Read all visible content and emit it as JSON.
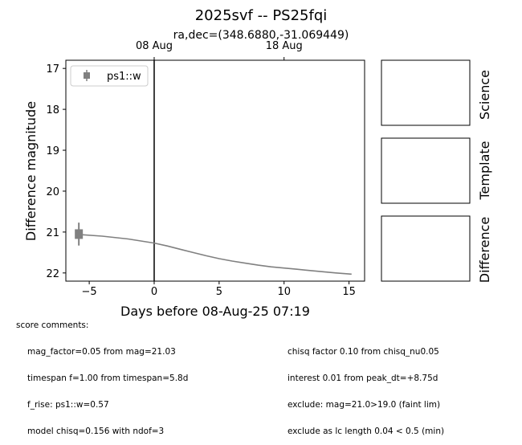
{
  "title": "2025svf -- PS25fqi",
  "subtitle": "ra,dec=(348.6880,-31.069449)",
  "chart_data": {
    "type": "line",
    "xlabel": "Days before 08-Aug-25 07:19",
    "ylabel": "Difference magnitude",
    "xlim": [
      -6.8,
      16.2
    ],
    "ylim": [
      22.2,
      16.8
    ],
    "y_inverted": true,
    "x_ticks": [
      -5,
      0,
      5,
      10,
      15
    ],
    "x_tick_labels": [
      "−5",
      "0",
      "5",
      "10",
      "15"
    ],
    "y_ticks": [
      17,
      18,
      19,
      20,
      21,
      22
    ],
    "top_ticks": [
      {
        "x": 0,
        "label": "08 Aug"
      },
      {
        "x": 10,
        "label": "18 Aug"
      }
    ],
    "vertical_line_x": 0,
    "legend": {
      "position": "top-left",
      "entries": [
        {
          "label": "ps1::w",
          "color": "#808080",
          "marker": "square-errorbar"
        }
      ]
    },
    "points": [
      {
        "series": "ps1::w",
        "x": -5.8,
        "y": 21.05,
        "yerr": 0.28
      }
    ],
    "model_curve": {
      "color": "#808080",
      "x": [
        -5.8,
        -4,
        -2,
        0,
        1,
        2,
        3,
        4,
        5,
        6,
        7,
        8,
        9,
        10,
        11,
        12,
        13,
        14,
        15.2
      ],
      "y": [
        21.06,
        21.1,
        21.17,
        21.27,
        21.34,
        21.42,
        21.5,
        21.58,
        21.65,
        21.71,
        21.76,
        21.81,
        21.85,
        21.88,
        21.91,
        21.94,
        21.97,
        22.0,
        22.03
      ]
    }
  },
  "side_panels": [
    {
      "label": "Science"
    },
    {
      "label": "Template"
    },
    {
      "label": "Difference"
    }
  ],
  "comments": {
    "header": "score comments:",
    "left": [
      "mag_factor=0.05 from mag=21.03",
      "timespan f=1.00 from timespan=5.8d",
      "f_rise: ps1::w=0.57",
      "model chisq=0.156 with ndof=3"
    ],
    "right": [
      "chisq factor 0.10 from chisq_nu0.05",
      "interest 0.01 from peak_dt=+8.75d",
      "exclude: mag=21.0>19.0 (faint lim)",
      "exclude as lc length 0.04 < 0.5 (min)"
    ]
  }
}
